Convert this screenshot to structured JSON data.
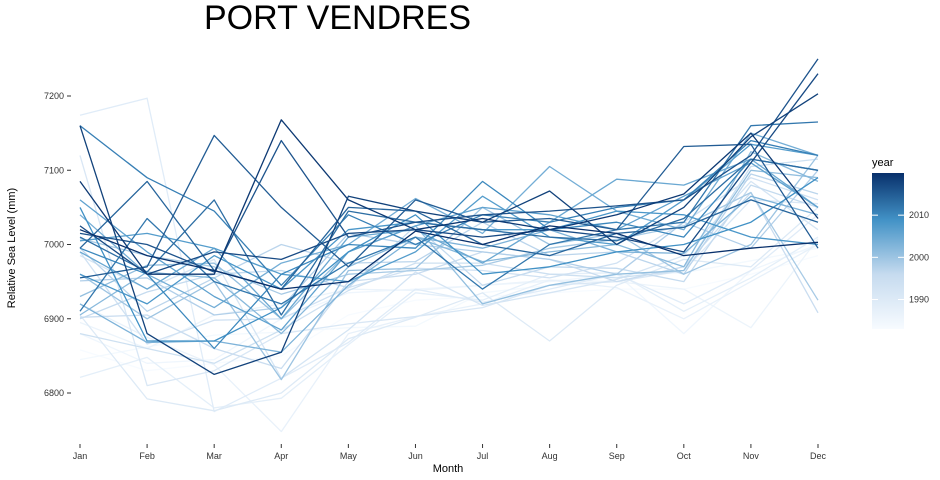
{
  "chart_data": {
    "type": "line",
    "title": "PORT VENDRES",
    "xlabel": "Month",
    "ylabel": "Relative Sea Level (mm)",
    "categories": [
      "Jan",
      "Feb",
      "Mar",
      "Apr",
      "May",
      "Jun",
      "Jul",
      "Aug",
      "Sep",
      "Oct",
      "Nov",
      "Dec"
    ],
    "y_ticks": [
      6800,
      6900,
      7000,
      7100,
      7200
    ],
    "ylim": [
      6735,
      7260
    ],
    "grid": false,
    "legend": {
      "title": "year",
      "placement": "right",
      "type": "colorbar",
      "range": [
        1983,
        2020
      ],
      "ticks": [
        1990,
        2000,
        2010
      ],
      "color_low": "#f7fbff",
      "color_high": "#08306b"
    },
    "series": [
      {
        "year": 1983,
        "values": [
          6858,
          6830,
          6840,
          6850,
          6905,
          6925,
          6930,
          6935,
          6940,
          6940,
          6960,
          6985
        ]
      },
      {
        "year": 1984,
        "values": [
          6845,
          6862,
          6878,
          6882,
          6888,
          6890,
          6935,
          6945,
          6958,
          6962,
          6978,
          6995
        ]
      },
      {
        "year": 1985,
        "values": [
          6880,
          6840,
          6845,
          6900,
          6935,
          6940,
          6945,
          6950,
          6960,
          6880,
          6965,
          7000
        ]
      },
      {
        "year": 1986,
        "values": [
          6895,
          6860,
          6905,
          6920,
          6940,
          6938,
          6945,
          6952,
          6950,
          6940,
          6888,
          7008
        ]
      },
      {
        "year": 1987,
        "values": [
          6920,
          6875,
          6838,
          6748,
          6880,
          6903,
          6920,
          6952,
          6942,
          6900,
          6950,
          7000
        ]
      },
      {
        "year": 1988,
        "values": [
          6821,
          6848,
          6780,
          6793,
          6865,
          6935,
          6925,
          6960,
          6962,
          6910,
          6955,
          7010
        ]
      },
      {
        "year": 1989,
        "values": [
          7174,
          7197,
          6775,
          6820,
          6868,
          6940,
          6922,
          6940,
          6960,
          6920,
          6965,
          7040
        ]
      },
      {
        "year": 1990,
        "values": [
          6905,
          6792,
          6776,
          6800,
          6873,
          6902,
          6935,
          6870,
          6945,
          6980,
          6970,
          7050
        ]
      },
      {
        "year": 1991,
        "values": [
          7120,
          6810,
          6830,
          6880,
          6893,
          6903,
          6915,
          6945,
          6950,
          6965,
          7060,
          7055
        ]
      },
      {
        "year": 1992,
        "values": [
          6985,
          6940,
          6980,
          6820,
          6885,
          6963,
          6918,
          6935,
          6953,
          6985,
          7085,
          7020
        ]
      },
      {
        "year": 1993,
        "values": [
          6990,
          6866,
          6898,
          6900,
          6942,
          6968,
          6965,
          6955,
          6975,
          7030,
          7090,
          7060
        ]
      },
      {
        "year": 1994,
        "values": [
          6880,
          6860,
          6840,
          6885,
          6938,
          6975,
          6975,
          6960,
          6955,
          6965,
          7105,
          7115
        ]
      },
      {
        "year": 1995,
        "values": [
          6902,
          6905,
          6860,
          6833,
          6950,
          6960,
          6990,
          6980,
          6950,
          6970,
          7070,
          6908
        ]
      },
      {
        "year": 1996,
        "values": [
          6900,
          6936,
          6960,
          6965,
          6942,
          7025,
          6945,
          6970,
          6968,
          6950,
          7080,
          7050
        ]
      },
      {
        "year": 1997,
        "values": [
          6995,
          6910,
          6955,
          7000,
          6975,
          6977,
          7030,
          6985,
          6990,
          6960,
          7095,
          7068
        ]
      },
      {
        "year": 1998,
        "values": [
          6951,
          6955,
          6905,
          6915,
          7015,
          7000,
          6990,
          6980,
          6960,
          7030,
          6995,
          7100
        ]
      },
      {
        "year": 1999,
        "values": [
          7008,
          6985,
          6970,
          6933,
          6960,
          6965,
          6972,
          6995,
          7007,
          7025,
          7070,
          6925
        ]
      },
      {
        "year": 2000,
        "values": [
          6960,
          6900,
          6950,
          6818,
          6965,
          6968,
          7050,
          7000,
          7015,
          6960,
          7000,
          7120
        ]
      },
      {
        "year": 2001,
        "values": [
          6930,
          6972,
          6975,
          6900,
          6990,
          7025,
          6920,
          6945,
          6960,
          6965,
          7100,
          7090
        ]
      },
      {
        "year": 2002,
        "values": [
          6905,
          6963,
          6955,
          6880,
          6970,
          7010,
          6977,
          6990,
          7000,
          6970,
          7125,
          7085
        ]
      },
      {
        "year": 2003,
        "values": [
          6920,
          6868,
          6870,
          6855,
          6945,
          7010,
          6995,
          7020,
          6990,
          6988,
          7065,
          7040
        ]
      },
      {
        "year": 2004,
        "values": [
          7040,
          6960,
          6915,
          6975,
          7000,
          7062,
          7015,
          7105,
          7045,
          7020,
          7150,
          7120
        ]
      },
      {
        "year": 2005,
        "values": [
          6990,
          6940,
          6995,
          6900,
          7010,
          7020,
          6975,
          7030,
          7088,
          7080,
          7115,
          7050
        ]
      },
      {
        "year": 2006,
        "values": [
          7060,
          6990,
          6930,
          6885,
          6990,
          7025,
          7050,
          7040,
          7020,
          7065,
          7110,
          7050
        ]
      },
      {
        "year": 2007,
        "values": [
          7005,
          7015,
          6995,
          6960,
          6950,
          6990,
          7065,
          7010,
          7000,
          7060,
          7135,
          7120
        ]
      },
      {
        "year": 2008,
        "values": [
          6960,
          6920,
          6985,
          6940,
          7020,
          7030,
          7020,
          7020,
          7045,
          7040,
          7010,
          7000
        ]
      },
      {
        "year": 2009,
        "values": [
          7050,
          6870,
          6870,
          6915,
          6990,
          7040,
          6960,
          6970,
          6990,
          7000,
          7030,
          7090
        ]
      },
      {
        "year": 2010,
        "values": [
          6995,
          6960,
          6860,
          6960,
          7000,
          6995,
          7085,
          7020,
          7030,
          7010,
          7115,
          7100
        ]
      },
      {
        "year": 2011,
        "values": [
          7160,
          7090,
          7045,
          6945,
          7040,
          7000,
          7040,
          7030,
          7050,
          7060,
          7140,
          7120
        ]
      },
      {
        "year": 2012,
        "values": [
          6910,
          7035,
          6950,
          6920,
          6975,
          7010,
          6940,
          7000,
          7020,
          7030,
          7160,
          7165
        ]
      },
      {
        "year": 2013,
        "values": [
          7010,
          6963,
          7060,
          6905,
          7045,
          7030,
          7020,
          7010,
          7005,
          7035,
          7115,
          7100
        ]
      },
      {
        "year": 2014,
        "values": [
          6995,
          7085,
          6965,
          6940,
          7050,
          7045,
          7000,
          6985,
          7015,
          7023,
          7060,
          7030
        ]
      },
      {
        "year": 2015,
        "values": [
          6955,
          6970,
          7147,
          7050,
          6970,
          7060,
          7030,
          7035,
          7020,
          7132,
          7135,
          6995
        ]
      },
      {
        "year": 2016,
        "values": [
          7015,
          7000,
          6963,
          7140,
          7010,
          7030,
          7040,
          7045,
          7052,
          7060,
          7120,
          7250
        ]
      },
      {
        "year": 2017,
        "values": [
          7025,
          6960,
          6990,
          6980,
          7015,
          7020,
          7010,
          7020,
          7010,
          6990,
          7110,
          7230
        ]
      },
      {
        "year": 2018,
        "values": [
          7160,
          6880,
          6825,
          6855,
          7065,
          7045,
          7030,
          7072,
          7000,
          7050,
          7145,
          7203
        ]
      },
      {
        "year": 2019,
        "values": [
          7085,
          6960,
          6960,
          7168,
          7060,
          7020,
          7035,
          7020,
          7040,
          7068,
          7150,
          7035
        ]
      },
      {
        "year": 2020,
        "values": [
          7020,
          6985,
          6965,
          6940,
          6950,
          7018,
          7000,
          7025,
          7015,
          6985,
          6995,
          7003
        ]
      }
    ]
  }
}
